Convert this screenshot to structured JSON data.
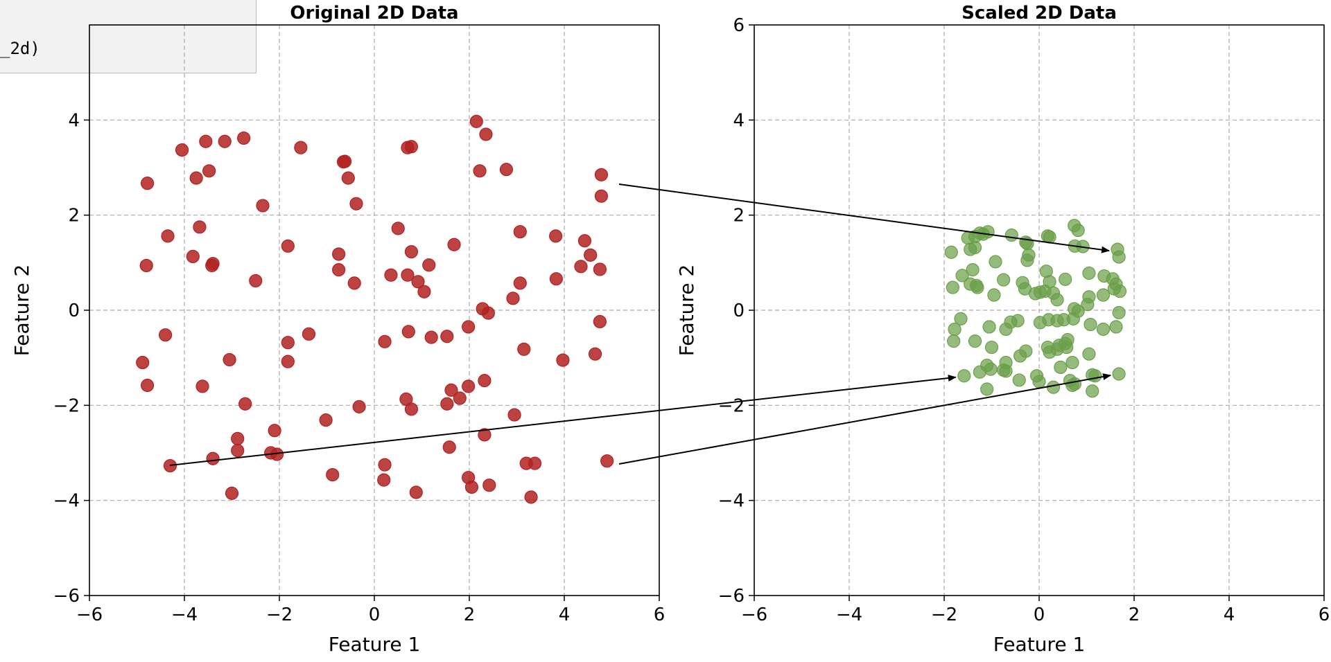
{
  "code_snippet": {
    "text": "_2d)"
  },
  "colors": {
    "original_points": "#b22222",
    "scaled_points": "#6b9f4a",
    "grid": "#aaaaaa",
    "axis": "#000000"
  },
  "chart_data": [
    {
      "type": "scatter",
      "title": "Original 2D Data",
      "xlabel": "Feature 1",
      "ylabel": "Feature 2",
      "xlim": [
        -6,
        6
      ],
      "ylim": [
        -6,
        6
      ],
      "xticks": [
        -6,
        -4,
        -2,
        0,
        2,
        4,
        6
      ],
      "yticks": [
        -6,
        -4,
        -2,
        0,
        2,
        4
      ],
      "xtick_labels": [
        "−6",
        "−4",
        "−2",
        "0",
        "2",
        "4",
        "6"
      ],
      "ytick_labels": [
        "−6",
        "−4",
        "−2",
        "0",
        "2",
        "4"
      ],
      "grid": true,
      "points": [
        [
          2.15,
          3.97
        ],
        [
          2.35,
          3.7
        ],
        [
          -2.75,
          3.62
        ],
        [
          -3.55,
          3.55
        ],
        [
          -3.15,
          3.55
        ],
        [
          -1.55,
          3.42
        ],
        [
          -4.05,
          3.37
        ],
        [
          0.7,
          3.42
        ],
        [
          0.78,
          3.44
        ],
        [
          -0.62,
          3.13
        ],
        [
          -0.65,
          3.12
        ],
        [
          -3.48,
          2.93
        ],
        [
          -3.75,
          2.78
        ],
        [
          2.22,
          2.93
        ],
        [
          2.78,
          2.96
        ],
        [
          -0.55,
          2.78
        ],
        [
          -4.78,
          2.67
        ],
        [
          4.78,
          2.85
        ],
        [
          4.78,
          2.4
        ],
        [
          -0.38,
          2.24
        ],
        [
          -2.35,
          2.2
        ],
        [
          -3.68,
          1.75
        ],
        [
          0.5,
          1.72
        ],
        [
          3.07,
          1.65
        ],
        [
          -4.35,
          1.56
        ],
        [
          3.82,
          1.56
        ],
        [
          4.43,
          1.46
        ],
        [
          1.68,
          1.38
        ],
        [
          -1.82,
          1.35
        ],
        [
          0.78,
          1.23
        ],
        [
          -0.75,
          1.18
        ],
        [
          4.55,
          1.16
        ],
        [
          -3.82,
          1.13
        ],
        [
          1.15,
          0.95
        ],
        [
          -3.4,
          0.98
        ],
        [
          -3.42,
          0.94
        ],
        [
          -4.8,
          0.94
        ],
        [
          4.35,
          0.92
        ],
        [
          4.75,
          0.86
        ],
        [
          -0.75,
          0.85
        ],
        [
          0.35,
          0.74
        ],
        [
          0.7,
          0.74
        ],
        [
          3.83,
          0.66
        ],
        [
          -2.5,
          0.62
        ],
        [
          0.92,
          0.6
        ],
        [
          -0.42,
          0.57
        ],
        [
          3.07,
          0.57
        ],
        [
          1.05,
          0.39
        ],
        [
          2.92,
          0.25
        ],
        [
          2.28,
          0.03
        ],
        [
          2.4,
          -0.06
        ],
        [
          4.75,
          -0.24
        ],
        [
          1.98,
          -0.35
        ],
        [
          0.72,
          -0.45
        ],
        [
          -1.38,
          -0.5
        ],
        [
          -4.4,
          -0.52
        ],
        [
          1.53,
          -0.55
        ],
        [
          1.2,
          -0.57
        ],
        [
          0.22,
          -0.66
        ],
        [
          -1.82,
          -0.68
        ],
        [
          3.15,
          -0.82
        ],
        [
          4.65,
          -0.92
        ],
        [
          -3.05,
          -1.04
        ],
        [
          3.97,
          -1.05
        ],
        [
          -4.88,
          -1.1
        ],
        [
          -1.82,
          -1.08
        ],
        [
          2.32,
          -1.48
        ],
        [
          -3.62,
          -1.6
        ],
        [
          -4.78,
          -1.58
        ],
        [
          1.98,
          -1.6
        ],
        [
          1.62,
          -1.68
        ],
        [
          1.8,
          -1.85
        ],
        [
          0.67,
          -1.87
        ],
        [
          1.53,
          -1.97
        ],
        [
          -2.72,
          -1.97
        ],
        [
          -0.32,
          -2.03
        ],
        [
          0.78,
          -2.08
        ],
        [
          2.95,
          -2.2
        ],
        [
          -1.02,
          -2.31
        ],
        [
          -2.1,
          -2.53
        ],
        [
          2.32,
          -2.62
        ],
        [
          -2.88,
          -2.7
        ],
        [
          1.58,
          -2.88
        ],
        [
          -2.88,
          -2.95
        ],
        [
          -2.18,
          -3.0
        ],
        [
          -2.05,
          -3.03
        ],
        [
          -3.4,
          -3.12
        ],
        [
          4.9,
          -3.17
        ],
        [
          3.2,
          -3.22
        ],
        [
          3.38,
          -3.22
        ],
        [
          -4.3,
          -3.27
        ],
        [
          0.22,
          -3.25
        ],
        [
          -0.88,
          -3.46
        ],
        [
          1.98,
          -3.52
        ],
        [
          0.2,
          -3.57
        ],
        [
          2.42,
          -3.68
        ],
        [
          2.05,
          -3.72
        ],
        [
          0.88,
          -3.83
        ],
        [
          -3.0,
          -3.85
        ],
        [
          3.3,
          -3.93
        ]
      ]
    },
    {
      "type": "scatter",
      "title": "Scaled 2D Data",
      "xlabel": "Feature 1",
      "ylabel": "Feature 2",
      "xlim": [
        -6,
        6
      ],
      "ylim": [
        -6,
        6
      ],
      "xticks": [
        -6,
        -4,
        -2,
        0,
        2,
        4,
        6
      ],
      "yticks": [
        -6,
        -4,
        -2,
        0,
        2,
        4,
        6
      ],
      "xtick_labels": [
        "−6",
        "−4",
        "−2",
        "0",
        "2",
        "4",
        "6"
      ],
      "ytick_labels": [
        "−6",
        "−4",
        "−2",
        "0",
        "2",
        "4",
        "6"
      ],
      "grid": true,
      "points": [
        [
          0.74,
          1.78
        ],
        [
          0.82,
          1.68
        ],
        [
          -1.08,
          1.65
        ],
        [
          -1.25,
          1.62
        ],
        [
          -1.18,
          1.6
        ],
        [
          -0.58,
          1.58
        ],
        [
          -1.35,
          1.55
        ],
        [
          0.18,
          1.56
        ],
        [
          0.22,
          1.54
        ],
        [
          -1.5,
          1.52
        ],
        [
          -0.28,
          1.43
        ],
        [
          -0.25,
          1.4
        ],
        [
          0.75,
          1.35
        ],
        [
          0.92,
          1.34
        ],
        [
          -1.35,
          1.32
        ],
        [
          -1.45,
          1.28
        ],
        [
          -1.85,
          1.22
        ],
        [
          1.65,
          1.28
        ],
        [
          1.68,
          1.12
        ],
        [
          -0.22,
          1.16
        ],
        [
          -0.92,
          1.02
        ],
        [
          -0.25,
          1.05
        ],
        [
          -1.4,
          0.85
        ],
        [
          0.15,
          0.82
        ],
        [
          -1.62,
          0.73
        ],
        [
          1.37,
          0.72
        ],
        [
          1.55,
          0.66
        ],
        [
          1.05,
          0.78
        ],
        [
          -0.75,
          0.64
        ],
        [
          0.55,
          0.65
        ],
        [
          -0.35,
          0.58
        ],
        [
          1.62,
          0.55
        ],
        [
          0.22,
          0.6
        ],
        [
          -1.45,
          0.55
        ],
        [
          -1.32,
          0.52
        ],
        [
          -1.3,
          0.48
        ],
        [
          -1.82,
          0.48
        ],
        [
          1.58,
          0.45
        ],
        [
          1.7,
          0.4
        ],
        [
          -0.3,
          0.45
        ],
        [
          0.02,
          0.38
        ],
        [
          0.12,
          0.4
        ],
        [
          1.35,
          0.32
        ],
        [
          -0.95,
          0.32
        ],
        [
          0.3,
          0.36
        ],
        [
          -0.08,
          0.35
        ],
        [
          1.05,
          0.28
        ],
        [
          0.38,
          0.22
        ],
        [
          1.02,
          0.12
        ],
        [
          0.74,
          0.03
        ],
        [
          0.82,
          -0.02
        ],
        [
          1.68,
          -0.05
        ],
        [
          0.72,
          -0.18
        ],
        [
          0.2,
          -0.2
        ],
        [
          -0.45,
          -0.22
        ],
        [
          -1.65,
          -0.18
        ],
        [
          0.52,
          -0.2
        ],
        [
          0.38,
          -0.22
        ],
        [
          0.02,
          -0.26
        ],
        [
          -0.6,
          -0.25
        ],
        [
          1.08,
          -0.3
        ],
        [
          1.62,
          -0.35
        ],
        [
          -1.05,
          -0.35
        ],
        [
          1.35,
          -0.4
        ],
        [
          -1.78,
          -0.4
        ],
        [
          -0.7,
          -0.4
        ],
        [
          0.6,
          -0.62
        ],
        [
          -1.35,
          -0.65
        ],
        [
          -1.8,
          -0.65
        ],
        [
          0.55,
          -0.7
        ],
        [
          0.42,
          -0.74
        ],
        [
          0.58,
          -0.78
        ],
        [
          0.18,
          -0.78
        ],
        [
          0.38,
          -0.82
        ],
        [
          -1.0,
          -0.78
        ],
        [
          -0.28,
          -0.86
        ],
        [
          0.22,
          -0.88
        ],
        [
          1.05,
          -0.92
        ],
        [
          -0.4,
          -0.96
        ],
        [
          -0.7,
          -1.1
        ],
        [
          0.7,
          -1.1
        ],
        [
          -1.1,
          -1.16
        ],
        [
          0.45,
          -1.2
        ],
        [
          -1.02,
          -1.24
        ],
        [
          -0.75,
          -1.26
        ],
        [
          -0.7,
          -1.28
        ],
        [
          -1.25,
          -1.3
        ],
        [
          1.68,
          -1.34
        ],
        [
          1.12,
          -1.36
        ],
        [
          1.18,
          -1.38
        ],
        [
          -1.58,
          -1.38
        ],
        [
          -0.05,
          -1.38
        ],
        [
          -0.42,
          -1.47
        ],
        [
          0.65,
          -1.48
        ],
        [
          0.0,
          -1.5
        ],
        [
          0.75,
          -1.55
        ],
        [
          0.7,
          -1.58
        ],
        [
          0.3,
          -1.62
        ],
        [
          -1.1,
          -1.66
        ],
        [
          1.12,
          -1.7
        ]
      ]
    }
  ]
}
